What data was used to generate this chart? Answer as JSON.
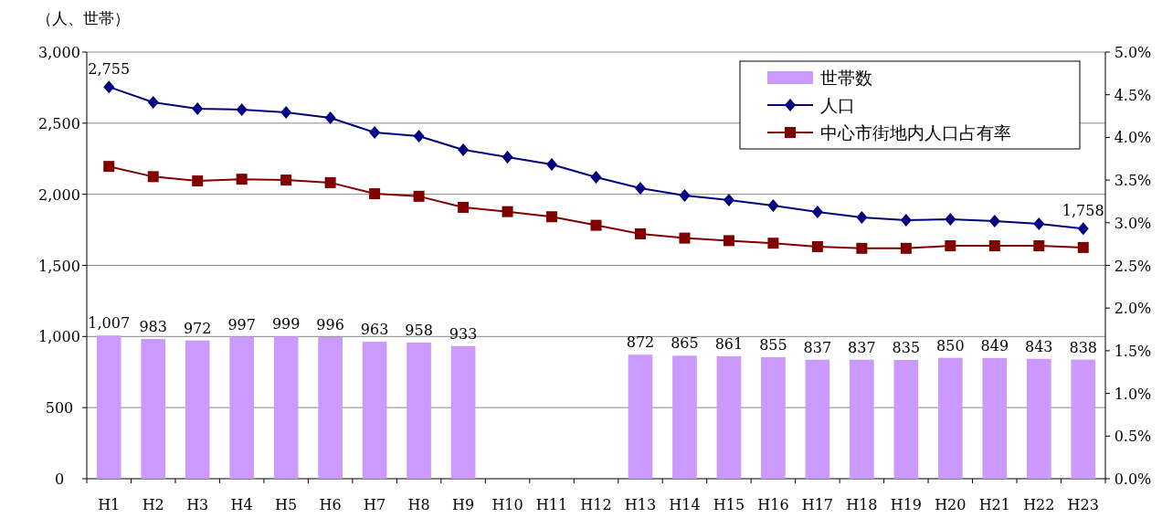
{
  "chart_data": {
    "type": "bar",
    "ylabel": "（人、世帯）",
    "categories": [
      "H1",
      "H2",
      "H3",
      "H4",
      "H5",
      "H6",
      "H7",
      "H8",
      "H9",
      "H10",
      "H11",
      "H12",
      "H13",
      "H14",
      "H15",
      "H16",
      "H17",
      "H18",
      "H19",
      "H20",
      "H21",
      "H22",
      "H23"
    ],
    "series": [
      {
        "name": "世帯数",
        "color": "#cc99ff",
        "values": [
          1007,
          983,
          972,
          997,
          999,
          996,
          963,
          958,
          933,
          null,
          null,
          null,
          872,
          865,
          861,
          855,
          837,
          837,
          835,
          850,
          849,
          843,
          838
        ],
        "value_labels": [
          "1,007",
          "983",
          "972",
          "997",
          "999",
          "996",
          "963",
          "958",
          "933",
          null,
          null,
          null,
          "872",
          "865",
          "861",
          "855",
          "837",
          "837",
          "835",
          "850",
          "849",
          "843",
          "838"
        ]
      },
      {
        "name": "人口",
        "type": "line",
        "color": "#000080",
        "marker": "diamond",
        "values": [
          2755,
          2647,
          2602,
          2595,
          2576,
          2537,
          2435,
          2409,
          2313,
          2261,
          2210,
          2120,
          2043,
          1991,
          1959,
          1921,
          1876,
          1837,
          1818,
          1824,
          1812,
          1792,
          1758
        ],
        "value_labels": [
          "2,755",
          null,
          null,
          null,
          null,
          null,
          null,
          null,
          null,
          null,
          null,
          null,
          null,
          null,
          null,
          null,
          null,
          null,
          null,
          null,
          null,
          null,
          "1,758"
        ]
      },
      {
        "name": "中心市街地内人口占有率",
        "type": "line",
        "axis": "y2",
        "color": "#800000",
        "marker": "square",
        "values": [
          3.66,
          3.54,
          3.49,
          3.51,
          3.5,
          3.47,
          3.34,
          3.31,
          3.18,
          3.13,
          3.07,
          2.97,
          2.87,
          2.82,
          2.79,
          2.76,
          2.72,
          2.7,
          2.7,
          2.73,
          2.73,
          2.73,
          2.71
        ]
      }
    ],
    "ylim": [
      0,
      3000
    ],
    "yticks": [
      {
        "value": 0,
        "label": "0"
      },
      {
        "value": 500,
        "label": "500"
      },
      {
        "value": 1000,
        "label": "1,000"
      },
      {
        "value": 1500,
        "label": "1,500"
      },
      {
        "value": 2000,
        "label": "2,000"
      },
      {
        "value": 2500,
        "label": "2,500"
      },
      {
        "value": 3000,
        "label": "3,000"
      }
    ],
    "y2lim": [
      0,
      5
    ],
    "y2ticks": [
      {
        "value": 0,
        "label": "0.0%"
      },
      {
        "value": 0.5,
        "label": "0.5%"
      },
      {
        "value": 1,
        "label": "1.0%"
      },
      {
        "value": 1.5,
        "label": "1.5%"
      },
      {
        "value": 2,
        "label": "2.0%"
      },
      {
        "value": 2.5,
        "label": "2.5%"
      },
      {
        "value": 3,
        "label": "3.0%"
      },
      {
        "value": 3.5,
        "label": "3.5%"
      },
      {
        "value": 4,
        "label": "4.0%"
      },
      {
        "value": 4.5,
        "label": "4.5%"
      },
      {
        "value": 5,
        "label": "5.0%"
      }
    ],
    "grid": "y",
    "legend": "top right"
  }
}
